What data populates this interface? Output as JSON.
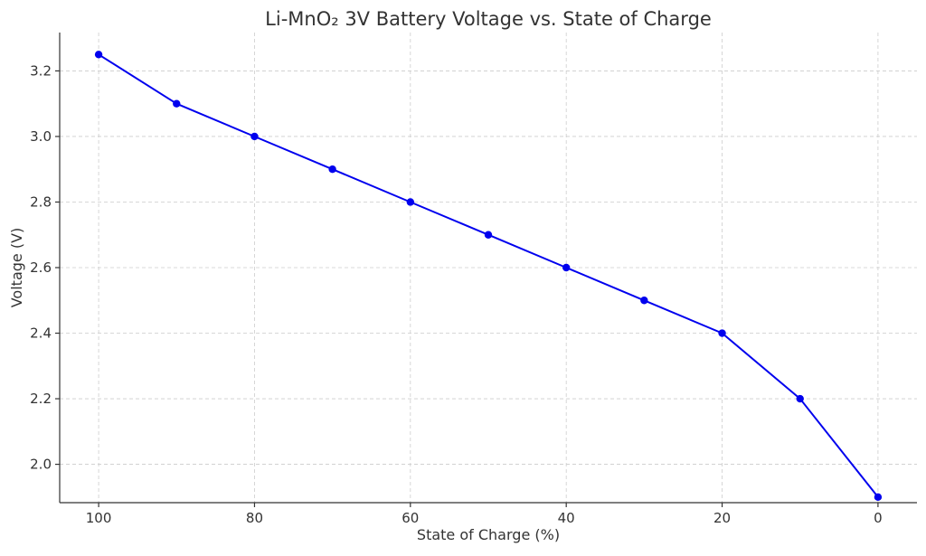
{
  "chart_data": {
    "type": "line",
    "title": "Li-MnO₂ 3V Battery Voltage vs. State of Charge",
    "xlabel": "State of Charge (%)",
    "ylabel": "Voltage (V)",
    "x_reversed": true,
    "xlim": [
      105,
      -5
    ],
    "ylim": [
      1.883,
      3.317
    ],
    "xticks": [
      100,
      80,
      60,
      40,
      20,
      0
    ],
    "yticks": [
      2.0,
      2.2,
      2.4,
      2.6,
      2.8,
      3.0,
      3.2
    ],
    "ytick_labels": [
      "2.0",
      "2.2",
      "2.4",
      "2.6",
      "2.8",
      "3.0",
      "3.2"
    ],
    "grid": true,
    "series": [
      {
        "color": "#0000ee",
        "marker": "circle",
        "x": [
          100,
          90,
          80,
          70,
          60,
          50,
          40,
          30,
          20,
          10,
          0
        ],
        "y": [
          3.25,
          3.1,
          3.0,
          2.9,
          2.8,
          2.7,
          2.6,
          2.5,
          2.4,
          2.2,
          1.9
        ]
      }
    ]
  }
}
